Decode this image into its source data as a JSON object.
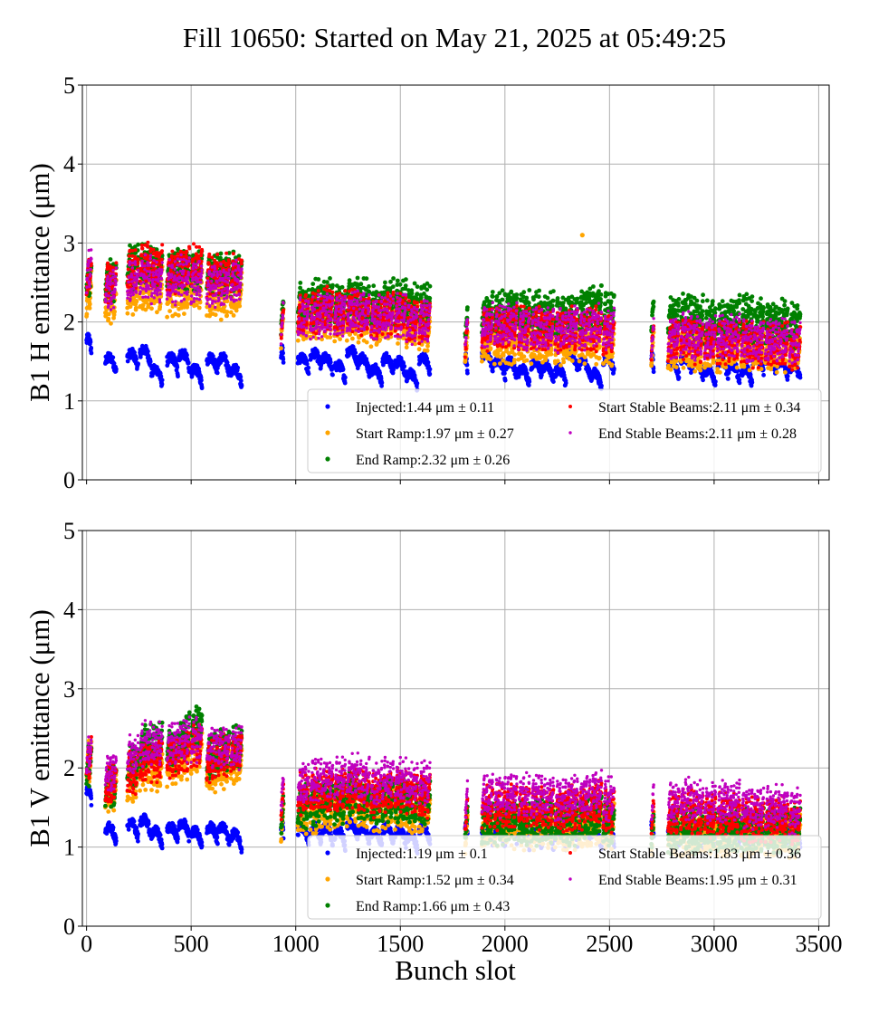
{
  "chart_data": {
    "title": "Fill 10650: Started on May 21, 2025 at 05:49:25",
    "charts": [
      {
        "type": "scatter",
        "ylabel": "B1 H emittance (μm)",
        "xlabel": "",
        "xlim": [
          -20,
          3550
        ],
        "ylim": [
          0,
          5
        ],
        "xticks": [
          0,
          500,
          1000,
          1500,
          2000,
          2500,
          3000,
          3500
        ],
        "yticks": [
          0,
          1,
          2,
          3,
          4,
          5
        ],
        "show_xtick_labels": false,
        "grid": true,
        "legend_location": "lower right",
        "series": [
          {
            "name": "Injected",
            "legend": "Injected:1.44 μm ± 0.11",
            "color": "#0000ff",
            "mean": 1.44,
            "std": 0.11
          },
          {
            "name": "Start Ramp",
            "legend": "Start Ramp:1.97 μm ± 0.27",
            "color": "#ffa500",
            "mean": 1.97,
            "std": 0.27
          },
          {
            "name": "End Ramp",
            "legend": "End Ramp:2.32 μm ± 0.26",
            "color": "#008000",
            "mean": 2.32,
            "std": 0.26
          },
          {
            "name": "Start Stable Beams",
            "legend": "Start Stable Beams:2.11 μm ± 0.34",
            "color": "#ff0000",
            "mean": 2.11,
            "std": 0.34
          },
          {
            "name": "End Stable Beams",
            "legend": "End Stable Beams:2.11 μm ± 0.28",
            "color": "#bf00bf",
            "mean": 2.11,
            "std": 0.28
          }
        ]
      },
      {
        "type": "scatter",
        "ylabel": "B1 V emittance (μm)",
        "xlabel": "Bunch slot",
        "xlim": [
          -20,
          3550
        ],
        "ylim": [
          0,
          5
        ],
        "xticks": [
          0,
          500,
          1000,
          1500,
          2000,
          2500,
          3000,
          3500
        ],
        "yticks": [
          0,
          1,
          2,
          3,
          4,
          5
        ],
        "show_xtick_labels": true,
        "grid": true,
        "legend_location": "lower right",
        "series": [
          {
            "name": "Injected",
            "legend": "Injected:1.19 μm ± 0.1",
            "color": "#0000ff",
            "mean": 1.19,
            "std": 0.1
          },
          {
            "name": "Start Ramp",
            "legend": "Start Ramp:1.52 μm ± 0.34",
            "color": "#ffa500",
            "mean": 1.52,
            "std": 0.34
          },
          {
            "name": "End Ramp",
            "legend": "End Ramp:1.66 μm ± 0.43",
            "color": "#008000",
            "mean": 1.66,
            "std": 0.43
          },
          {
            "name": "Start Stable Beams",
            "legend": "Start Stable Beams:1.83 μm ± 0.36",
            "color": "#ff0000",
            "mean": 1.83,
            "std": 0.36
          },
          {
            "name": "End Stable Beams",
            "legend": "End Stable Beams:1.95 μm ± 0.31",
            "color": "#bf00bf",
            "mean": 1.95,
            "std": 0.31
          }
        ]
      }
    ],
    "bunch_trains": {
      "group_starts": [
        0,
        90,
        195,
        255,
        310,
        385,
        440,
        500,
        575,
        630,
        690,
        930,
        1010,
        1070,
        1125,
        1185,
        1245,
        1300,
        1360,
        1415,
        1475,
        1530,
        1590,
        1810,
        1890,
        1950,
        2005,
        2065,
        2125,
        2180,
        2240,
        2295,
        2355,
        2410,
        2470,
        2700,
        2780,
        2840,
        2895,
        2955,
        3015,
        3070,
        3130,
        3185,
        3245,
        3300,
        3360
      ],
      "group_sizes": [
        24,
        48,
        48,
        48,
        48,
        48,
        48,
        48,
        48,
        48,
        48,
        12,
        48,
        48,
        48,
        48,
        48,
        48,
        48,
        48,
        48,
        48,
        48,
        12,
        48,
        48,
        48,
        48,
        48,
        48,
        48,
        48,
        48,
        48,
        48,
        12,
        48,
        48,
        48,
        48,
        48,
        48,
        48,
        48,
        48,
        48,
        48
      ],
      "h_levels": {
        "injected": [
          1.75,
          1.5,
          1.55,
          1.6,
          1.35,
          1.5,
          1.55,
          1.35,
          1.5,
          1.5,
          1.35,
          1.6,
          1.5,
          1.55,
          1.5,
          1.4,
          1.6,
          1.5,
          1.35,
          1.5,
          1.45,
          1.3,
          1.5,
          1.5,
          1.55,
          1.45,
          1.45,
          1.35,
          1.45,
          1.4,
          1.35,
          1.55,
          1.45,
          1.3,
          1.5,
          1.5,
          1.45,
          1.5,
          1.45,
          1.35,
          1.45,
          1.4,
          1.35,
          1.5,
          1.5,
          1.45,
          1.4
        ],
        "start_ramp": [
          2.4,
          2.3,
          2.4,
          2.45,
          2.45,
          2.4,
          2.4,
          2.45,
          2.35,
          2.35,
          2.4,
          2.0,
          2.05,
          2.05,
          2.1,
          2.05,
          2.1,
          2.05,
          2.0,
          2.05,
          2.05,
          2.0,
          1.95,
          1.75,
          1.8,
          1.8,
          1.8,
          1.8,
          1.75,
          1.8,
          1.75,
          1.8,
          1.8,
          1.8,
          1.75,
          1.75,
          1.7,
          1.75,
          1.7,
          1.75,
          1.7,
          1.7,
          1.7,
          1.7,
          1.7,
          1.7,
          1.7
        ],
        "end_ramp": [
          2.6,
          2.6,
          2.75,
          2.8,
          2.75,
          2.7,
          2.7,
          2.7,
          2.65,
          2.65,
          2.65,
          2.15,
          2.25,
          2.3,
          2.3,
          2.25,
          2.35,
          2.3,
          2.25,
          2.3,
          2.3,
          2.25,
          2.25,
          2.05,
          2.15,
          2.15,
          2.2,
          2.15,
          2.15,
          2.15,
          2.1,
          2.15,
          2.2,
          2.25,
          2.15,
          2.1,
          2.1,
          2.15,
          2.1,
          2.05,
          2.05,
          2.1,
          2.1,
          2.05,
          2.05,
          2.05,
          2.0
        ],
        "start_stable": [
          2.6,
          2.55,
          2.7,
          2.8,
          2.75,
          2.7,
          2.75,
          2.75,
          2.65,
          2.65,
          2.65,
          2.05,
          2.15,
          2.15,
          2.2,
          2.15,
          2.2,
          2.15,
          2.1,
          2.15,
          2.15,
          2.05,
          2.05,
          1.85,
          1.95,
          1.95,
          2.0,
          1.95,
          1.95,
          1.95,
          1.9,
          1.95,
          1.95,
          1.95,
          1.9,
          1.85,
          1.8,
          1.85,
          1.8,
          1.8,
          1.8,
          1.8,
          1.8,
          1.75,
          1.75,
          1.75,
          1.7
        ],
        "end_stable": [
          2.7,
          2.45,
          2.55,
          2.6,
          2.55,
          2.55,
          2.6,
          2.55,
          2.5,
          2.5,
          2.55,
          2.05,
          2.1,
          2.1,
          2.15,
          2.15,
          2.15,
          2.15,
          2.1,
          2.1,
          2.15,
          2.05,
          2.05,
          1.9,
          2.0,
          2.0,
          2.0,
          1.95,
          1.95,
          1.95,
          1.95,
          2.0,
          1.95,
          2.0,
          1.95,
          1.85,
          1.85,
          1.9,
          1.85,
          1.85,
          1.85,
          1.85,
          1.8,
          1.8,
          1.8,
          1.8,
          1.8
        ]
      },
      "v_levels": {
        "injected": [
          1.7,
          1.2,
          1.25,
          1.3,
          1.15,
          1.2,
          1.25,
          1.15,
          1.2,
          1.2,
          1.12,
          1.25,
          1.2,
          1.2,
          1.2,
          1.15,
          1.25,
          1.2,
          1.15,
          1.2,
          1.18,
          1.1,
          1.2,
          1.25,
          1.2,
          1.15,
          1.2,
          1.15,
          1.15,
          1.15,
          1.12,
          1.2,
          1.2,
          1.15,
          1.2,
          1.25,
          1.2,
          1.2,
          1.18,
          1.15,
          1.2,
          1.15,
          1.15,
          1.2,
          1.2,
          1.2,
          1.18
        ],
        "start_ramp": [
          2.1,
          1.75,
          1.9,
          2.05,
          2.0,
          2.1,
          2.15,
          2.25,
          2.0,
          2.05,
          2.1,
          1.4,
          1.5,
          1.5,
          1.55,
          1.55,
          1.6,
          1.55,
          1.5,
          1.55,
          1.55,
          1.5,
          1.5,
          1.25,
          1.3,
          1.3,
          1.3,
          1.3,
          1.3,
          1.3,
          1.3,
          1.3,
          1.3,
          1.35,
          1.3,
          1.2,
          1.2,
          1.2,
          1.2,
          1.2,
          1.2,
          1.2,
          1.2,
          1.2,
          1.2,
          1.2,
          1.2
        ],
        "end_ramp": [
          2.1,
          1.8,
          2.05,
          2.3,
          2.35,
          2.3,
          2.45,
          2.55,
          2.2,
          2.25,
          2.3,
          1.45,
          1.55,
          1.6,
          1.65,
          1.6,
          1.7,
          1.65,
          1.6,
          1.65,
          1.65,
          1.6,
          1.6,
          1.3,
          1.35,
          1.35,
          1.4,
          1.35,
          1.35,
          1.35,
          1.35,
          1.35,
          1.4,
          1.45,
          1.35,
          1.25,
          1.25,
          1.3,
          1.25,
          1.25,
          1.25,
          1.25,
          1.25,
          1.25,
          1.25,
          1.25,
          1.25
        ],
        "start_stable": [
          2.15,
          1.85,
          2.0,
          2.15,
          2.15,
          2.2,
          2.25,
          2.35,
          2.15,
          2.2,
          2.25,
          1.6,
          1.7,
          1.75,
          1.75,
          1.75,
          1.8,
          1.75,
          1.7,
          1.75,
          1.75,
          1.7,
          1.7,
          1.45,
          1.55,
          1.55,
          1.55,
          1.55,
          1.55,
          1.55,
          1.5,
          1.55,
          1.55,
          1.6,
          1.5,
          1.45,
          1.45,
          1.5,
          1.45,
          1.45,
          1.45,
          1.45,
          1.4,
          1.4,
          1.4,
          1.4,
          1.35
        ],
        "end_stable": [
          2.2,
          2.0,
          2.2,
          2.35,
          2.35,
          2.35,
          2.4,
          2.4,
          2.3,
          2.3,
          2.3,
          1.75,
          1.85,
          1.9,
          1.9,
          1.9,
          1.95,
          1.9,
          1.85,
          1.9,
          1.9,
          1.85,
          1.85,
          1.6,
          1.7,
          1.7,
          1.7,
          1.7,
          1.7,
          1.7,
          1.65,
          1.7,
          1.7,
          1.75,
          1.65,
          1.6,
          1.6,
          1.65,
          1.6,
          1.6,
          1.6,
          1.6,
          1.55,
          1.55,
          1.55,
          1.55,
          1.5
        ]
      },
      "outliers": [
        {
          "panel": 0,
          "series": "Start Ramp",
          "x": 2370,
          "y": 3.1
        }
      ]
    }
  }
}
